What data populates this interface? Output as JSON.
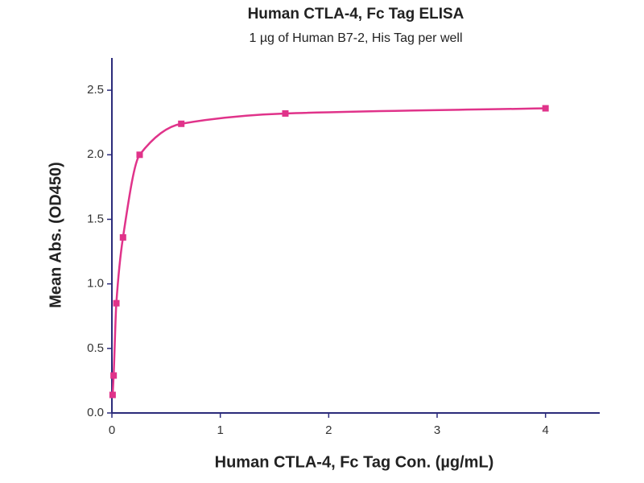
{
  "chart_data": {
    "type": "scatter",
    "title": "Human CTLA-4, Fc Tag ELISA",
    "subtitle": "1 µg of Human B7-2, His Tag per well",
    "x_label": "Human CTLA-4, Fc Tag Con. (µg/mL)",
    "y_label": "Mean Abs. (OD450)",
    "series": [
      {
        "color": "#e0338a",
        "x": [
          0.0066,
          0.016,
          0.041,
          0.1024,
          0.256,
          0.64,
          1.6,
          4
        ],
        "values": [
          0.14,
          0.29,
          0.85,
          1.36,
          2.0,
          2.24,
          2.32,
          2.36
        ]
      }
    ],
    "xlim": [
      0,
      4.5
    ],
    "ylim": [
      0,
      2.75
    ],
    "xticks": [
      0,
      1,
      2,
      3,
      4
    ],
    "yticks": [
      {
        "value": 0,
        "label": "0.0"
      },
      0.5,
      {
        "value": 1,
        "label": "1.0"
      },
      1.5,
      {
        "value": 2,
        "label": "2.0"
      },
      2.5
    ]
  }
}
